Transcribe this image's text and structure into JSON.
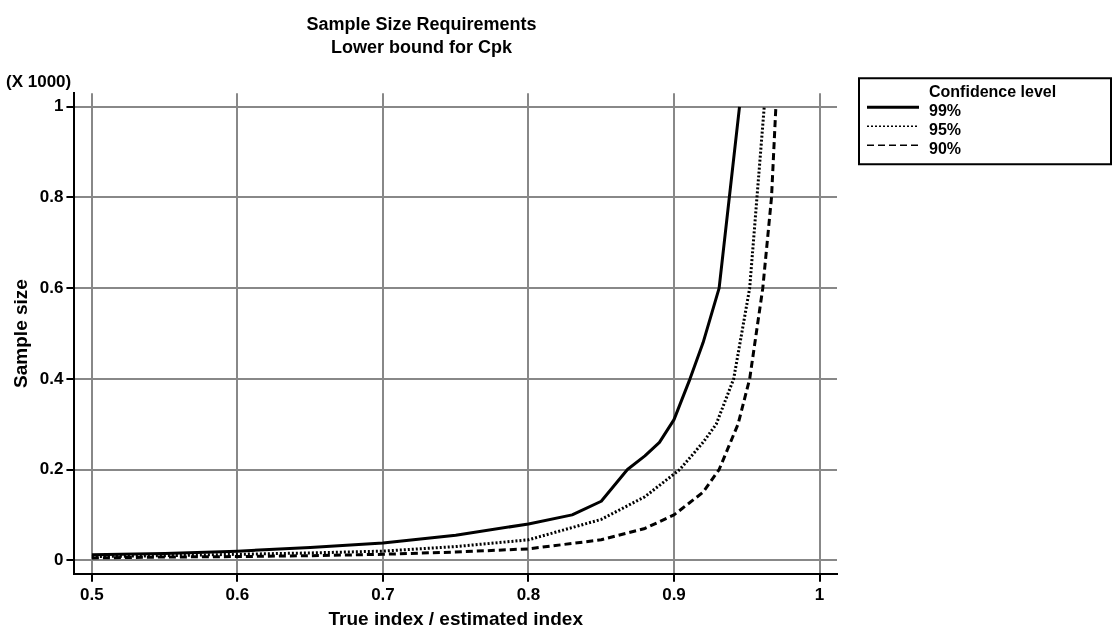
{
  "chart_data": {
    "type": "line",
    "title": "Sample Size Requirements",
    "subtitle": "Lower bound for Cpk",
    "xlabel": "True index / estimated index",
    "ylabel": "Sample size",
    "annotations": [
      "(X 1000)"
    ],
    "legend_title": "Confidence level",
    "legend": "right",
    "grid": true,
    "marker": "none",
    "xlim": [
      0.488,
      1.012
    ],
    "xticks": [
      0.5,
      0.6,
      0.7,
      0.8,
      0.9,
      1
    ],
    "ylim": [
      -0.03,
      1.03
    ],
    "yticks": [
      0,
      0.2,
      0.4,
      0.6,
      0.8,
      1
    ],
    "series": [
      {
        "name": "99%",
        "color": "#000000",
        "line_style": "solid",
        "x": [
          0.5,
          0.55,
          0.6,
          0.65,
          0.7,
          0.75,
          0.8,
          0.83,
          0.85,
          0.868,
          0.88,
          0.89,
          0.9,
          0.911,
          0.92,
          0.931,
          0.938,
          0.945
        ],
        "values": [
          0.012,
          0.015,
          0.02,
          0.028,
          0.038,
          0.055,
          0.08,
          0.1,
          0.13,
          0.2,
          0.23,
          0.26,
          0.31,
          0.4,
          0.48,
          0.6,
          0.8,
          1
        ]
      },
      {
        "name": "95%",
        "color": "#000000",
        "line_style": "dotted",
        "x": [
          0.5,
          0.55,
          0.6,
          0.65,
          0.7,
          0.75,
          0.8,
          0.85,
          0.88,
          0.904,
          0.92,
          0.929,
          0.941,
          0.952,
          0.957,
          0.962
        ],
        "values": [
          0.008,
          0.01,
          0.013,
          0.016,
          0.02,
          0.03,
          0.045,
          0.09,
          0.14,
          0.2,
          0.26,
          0.3,
          0.4,
          0.6,
          0.8,
          1
        ]
      },
      {
        "name": "90%",
        "color": "#000000",
        "line_style": "dashed",
        "x": [
          0.5,
          0.55,
          0.6,
          0.65,
          0.7,
          0.75,
          0.8,
          0.85,
          0.88,
          0.9,
          0.92,
          0.931,
          0.944,
          0.952,
          0.961,
          0.967,
          0.97
        ],
        "values": [
          0.005,
          0.007,
          0.008,
          0.01,
          0.013,
          0.018,
          0.025,
          0.045,
          0.07,
          0.1,
          0.15,
          0.2,
          0.3,
          0.4,
          0.6,
          0.8,
          1
        ]
      }
    ]
  }
}
